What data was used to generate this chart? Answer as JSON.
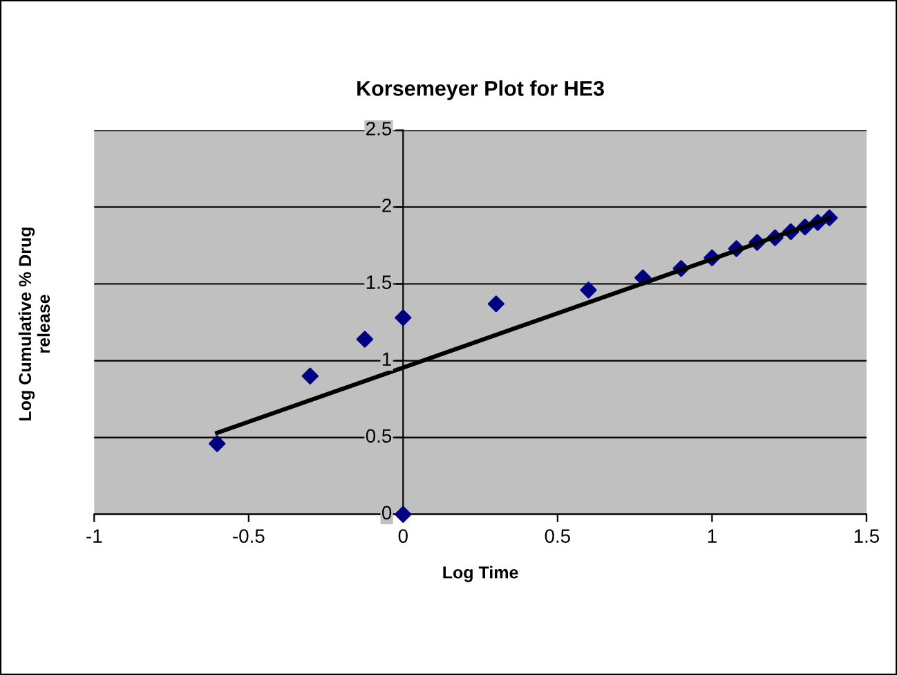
{
  "chart_data": {
    "type": "scatter",
    "title": "Korsemeyer Plot for HE3",
    "xlabel": "Log Time",
    "ylabel": "Log Cumulative % Drug\nrelease",
    "series": [
      {
        "type": "scatter",
        "color": "#000080",
        "marker": "diamond",
        "x": [
          -0.602,
          -0.301,
          -0.124,
          0,
          0,
          0.301,
          0.6,
          0.776,
          0.9,
          1.0,
          1.079,
          1.146,
          1.204,
          1.255,
          1.301,
          1.342,
          1.38
        ],
        "values": [
          0.46,
          0.9,
          1.14,
          1.28,
          0,
          1.37,
          1.46,
          1.54,
          1.6,
          1.67,
          1.73,
          1.77,
          1.8,
          1.84,
          1.87,
          1.9,
          1.93
        ]
      },
      {
        "type": "line",
        "color": "#000000",
        "marker": "none",
        "line_style": "solid",
        "x": [
          -0.602,
          1.38
        ],
        "values": [
          0.53,
          1.93
        ]
      }
    ],
    "xlim": [
      -1,
      1.5
    ],
    "xticks": [
      -1,
      -0.5,
      0,
      0.5,
      1,
      1.5
    ],
    "ylim": [
      0,
      2.5
    ],
    "yticks": [
      0,
      0.5,
      1,
      1.5,
      2,
      2.5
    ],
    "grid": "y",
    "legend": false
  }
}
